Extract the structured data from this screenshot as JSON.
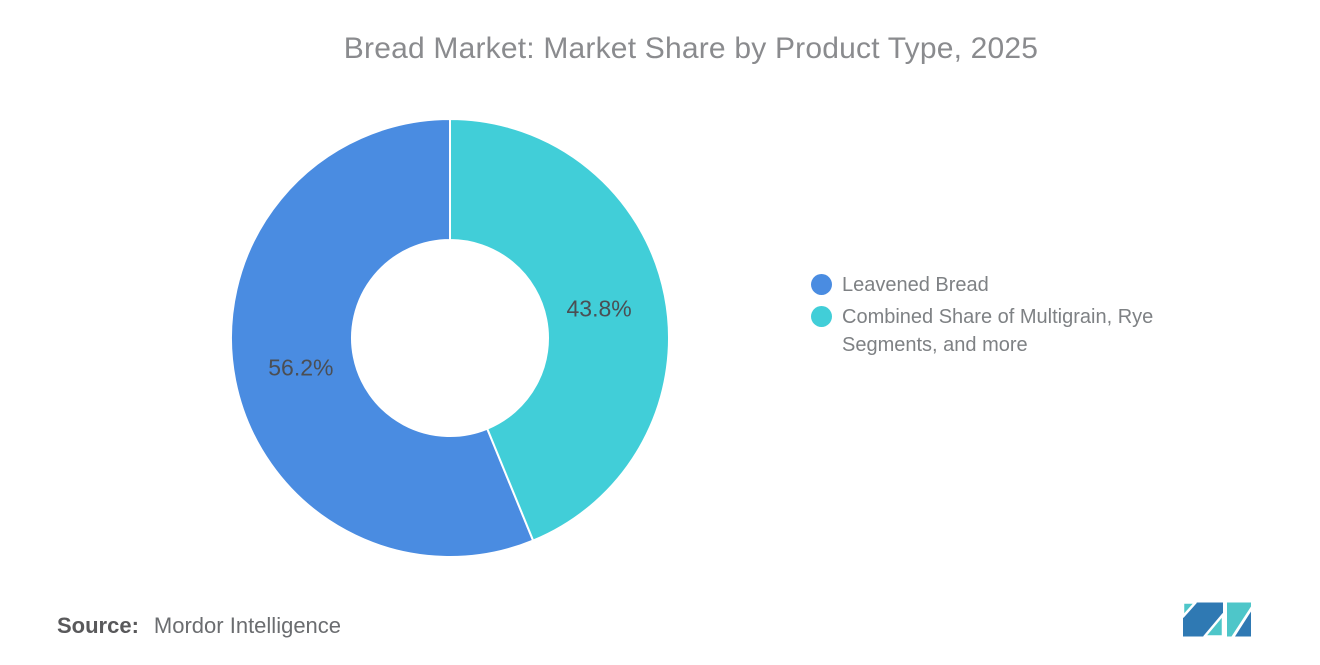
{
  "chart_data": {
    "type": "pie",
    "subtype": "donut",
    "title": "Bread Market: Market Share by Product Type, 2025",
    "unit": "%",
    "donut_hole_ratio": 0.45,
    "legend_position": "right",
    "start_angle_deg": 0,
    "counterclockwise": true,
    "slices": [
      {
        "label": "Leavened Bread",
        "value": 56.2,
        "data_label": "56.2%",
        "color": "#4A8CE1"
      },
      {
        "label": "Combined Share of Multigrain, Rye Segments, and more",
        "value": 43.8,
        "data_label": "43.8%",
        "color": "#41CED8"
      }
    ]
  },
  "footer": {
    "source_label": "Source:",
    "source_value": "Mordor Intelligence"
  },
  "branding": {
    "logo": "mordor-intelligence-m-mark",
    "logo_blue": "#2F79B3",
    "logo_teal": "#4EC6C9"
  }
}
